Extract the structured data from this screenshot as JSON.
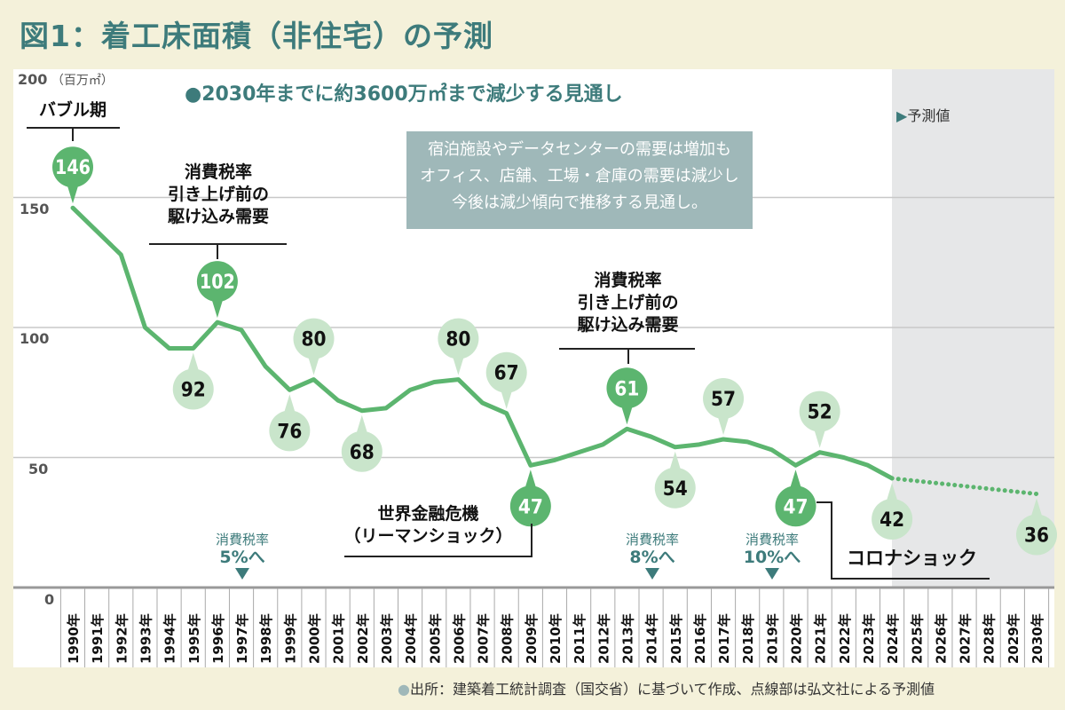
{
  "title": "図1：着工床面積（非住宅）の予測",
  "subtitle": "●2030年までに約3600万㎡まで減少する見通し",
  "info_box": [
    "宿泊施設やデータセンターの需要は増加も",
    "オフィス、店舗、工場・倉庫の需要は減少し",
    "今後は減少傾向で推移する見通し。"
  ],
  "forecast_label": "予測値",
  "forecast_marker": "▶",
  "source": "出所：建築着工統計調査（国交省）に基づいて作成、点線部は弘文社による予測値",
  "callouts": {
    "bubble": "バブル期",
    "tax_rush_1": [
      "消費税率",
      "引き上げ前の",
      "駆け込み需要"
    ],
    "tax_rush_2": [
      "消費税率",
      "引き上げ前の",
      "駆け込み需要"
    ],
    "lehman": [
      "世界金融危機",
      "（リーマンショック）"
    ],
    "corona": "コロナショック"
  },
  "tax_markers": [
    {
      "year": 1997,
      "line1": "消費税率",
      "line2": "5%へ"
    },
    {
      "year": 2014,
      "line1": "消費税率",
      "line2": "8%へ"
    },
    {
      "year": 2019,
      "line1": "消費税率",
      "line2": "10%へ"
    }
  ],
  "colors": {
    "line": "#5cb56f",
    "bubble_dark": "#5cb56f",
    "bubble_light": "#c9e5cb",
    "accent": "#3d7b7b",
    "forecast_bg": "#e6e7e8"
  },
  "chart_data": {
    "type": "line",
    "title": "図1：着工床面積（非住宅）の予測",
    "ylabel": "（百万㎡）",
    "ylim": [
      0,
      200
    ],
    "yticks": [
      "0",
      "50",
      "100",
      "150",
      "200"
    ],
    "grid": true,
    "x": [
      1990,
      1991,
      1992,
      1993,
      1994,
      1995,
      1996,
      1997,
      1998,
      1999,
      2000,
      2001,
      2002,
      2003,
      2004,
      2005,
      2006,
      2007,
      2008,
      2009,
      2010,
      2011,
      2012,
      2013,
      2014,
      2015,
      2016,
      2017,
      2018,
      2019,
      2020,
      2021,
      2022,
      2023,
      2024,
      2025,
      2026,
      2027,
      2028,
      2029,
      2030
    ],
    "x_tick_labels": [
      "1990年",
      "1991年",
      "1992年",
      "1993年",
      "1994年",
      "1995年",
      "1996年",
      "1997年",
      "1998年",
      "1999年",
      "2000年",
      "2001年",
      "2002年",
      "2003年",
      "2004年",
      "2005年",
      "2006年",
      "2007年",
      "2008年",
      "2009年",
      "2010年",
      "2011年",
      "2012年",
      "2013年",
      "2014年",
      "2015年",
      "2016年",
      "2017年",
      "2018年",
      "2019年",
      "2020年",
      "2021年",
      "2022年",
      "2023年",
      "2024年",
      "2025年",
      "2026年",
      "2027年",
      "2028年",
      "2029年",
      "2030年"
    ],
    "series": [
      {
        "style": "solid",
        "x": [
          1990,
          1991,
          1992,
          1993,
          1994,
          1995,
          1996,
          1997,
          1998,
          1999,
          2000,
          2001,
          2002,
          2003,
          2004,
          2005,
          2006,
          2007,
          2008,
          2009,
          2010,
          2011,
          2012,
          2013,
          2014,
          2015,
          2016,
          2017,
          2018,
          2019,
          2020,
          2021,
          2022,
          2023,
          2024
        ],
        "values": [
          146,
          137,
          128,
          100,
          92,
          92,
          102,
          99,
          85,
          76,
          80,
          72,
          68,
          69,
          76,
          79,
          80,
          71,
          67,
          47,
          49,
          52,
          55,
          61,
          58,
          54,
          55,
          57,
          56,
          53,
          47,
          52,
          50,
          47,
          42
        ]
      },
      {
        "style": "dotted",
        "x": [
          2024,
          2025,
          2026,
          2027,
          2028,
          2029,
          2030
        ],
        "values": [
          42,
          41,
          40,
          39,
          38,
          37,
          36
        ]
      }
    ],
    "data_labels": [
      {
        "year": 1990,
        "value": "146",
        "pos": "above",
        "style": "dark"
      },
      {
        "year": 1995,
        "value": "92",
        "pos": "below",
        "style": "light"
      },
      {
        "year": 1996,
        "value": "102",
        "pos": "above",
        "style": "dark"
      },
      {
        "year": 1999,
        "value": "76",
        "pos": "below",
        "style": "light"
      },
      {
        "year": 2000,
        "value": "80",
        "pos": "above",
        "style": "light"
      },
      {
        "year": 2002,
        "value": "68",
        "pos": "below",
        "style": "light"
      },
      {
        "year": 2006,
        "value": "80",
        "pos": "above",
        "style": "light"
      },
      {
        "year": 2008,
        "value": "67",
        "pos": "above",
        "style": "light"
      },
      {
        "year": 2009,
        "value": "47",
        "pos": "below",
        "style": "dark"
      },
      {
        "year": 2013,
        "value": "61",
        "pos": "above",
        "style": "dark"
      },
      {
        "year": 2015,
        "value": "54",
        "pos": "below",
        "style": "light"
      },
      {
        "year": 2017,
        "value": "57",
        "pos": "above",
        "style": "light"
      },
      {
        "year": 2020,
        "value": "47",
        "pos": "below",
        "style": "dark"
      },
      {
        "year": 2021,
        "value": "52",
        "pos": "above",
        "style": "light"
      },
      {
        "year": 2024,
        "value": "42",
        "pos": "below",
        "style": "light"
      },
      {
        "year": 2030,
        "value": "36",
        "pos": "below",
        "style": "light"
      }
    ],
    "forecast_start": 2024
  }
}
